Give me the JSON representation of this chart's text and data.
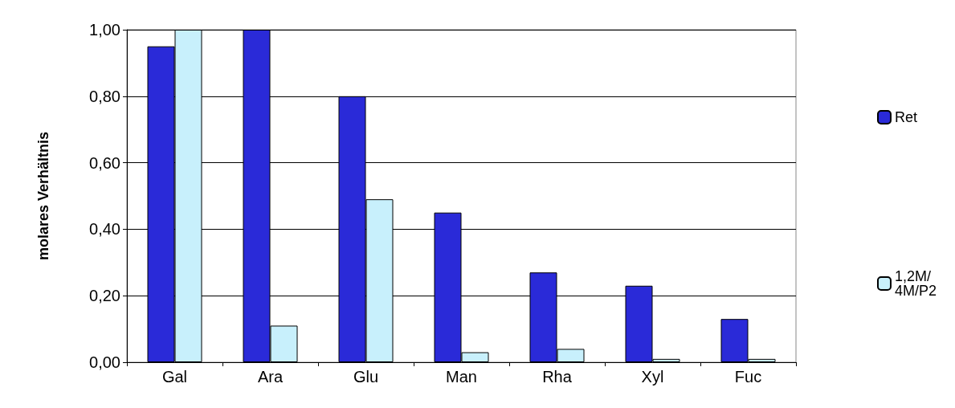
{
  "chart_data": {
    "type": "bar",
    "ylabel": "molares Verhältnis",
    "categories": [
      "Gal",
      "Ara",
      "Glu",
      "Man",
      "Rha",
      "Xyl",
      "Fuc"
    ],
    "series": [
      {
        "name": "Ret",
        "color": "#2a2ad8",
        "values": [
          0.95,
          1.0,
          0.8,
          0.45,
          0.27,
          0.23,
          0.13
        ]
      },
      {
        "name": "1,2M/4M/P2",
        "color": "#c8f0fc",
        "values": [
          1.0,
          0.11,
          0.49,
          0.03,
          0.04,
          0.01,
          0.01
        ]
      }
    ],
    "ylim": [
      0,
      1
    ],
    "yticks": [
      {
        "value": 0,
        "label": "0,00"
      },
      {
        "value": 0.2,
        "label": "0,20"
      },
      {
        "value": 0.4,
        "label": "0,40"
      },
      {
        "value": 0.6,
        "label": "0,60"
      },
      {
        "value": 0.8,
        "label": "0,80"
      },
      {
        "value": 1,
        "label": "1,00"
      }
    ],
    "grid": "y",
    "legend": "right"
  }
}
